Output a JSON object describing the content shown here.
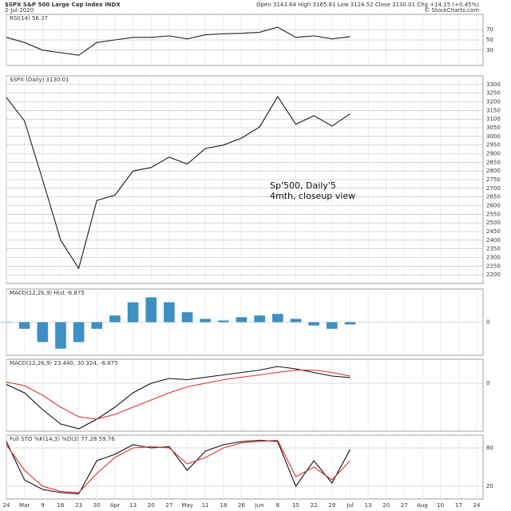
{
  "header": {
    "symbol": "$SPX S&P 500 Large Cap Index INDX",
    "date": "2-Jul-2020",
    "quote": "Open 3143.64  High 3165.81  Low 3124.52  Close 3130.01  Chg +14.15 (+0.45%)",
    "credit": "© StockCharts.com"
  },
  "chart_data": [
    {
      "type": "line",
      "title": "RSI(14) 56.37",
      "ylim": [
        0,
        100
      ],
      "yticks": [
        30,
        50,
        70
      ],
      "series": [
        {
          "color": "#222222",
          "values": [
            55,
            45,
            30,
            25,
            20,
            45,
            50,
            55,
            55,
            58,
            52,
            60,
            62,
            63,
            65,
            75,
            55,
            58,
            52,
            56.37,
            null,
            null,
            null,
            null,
            null,
            null,
            null
          ]
        }
      ]
    },
    {
      "type": "line",
      "title": "$SPX (Daily) 3130.01",
      "annotation": [
        "Sp'500, Daily'5",
        "4mth, closeup view"
      ],
      "ylim": [
        2150,
        3350
      ],
      "yticks": [
        2200,
        2250,
        2300,
        2350,
        2400,
        2450,
        2500,
        2550,
        2600,
        2650,
        2700,
        2750,
        2800,
        2850,
        2900,
        2950,
        3000,
        3050,
        3100,
        3150,
        3200,
        3250,
        3300
      ],
      "series": [
        {
          "color": "#1a1a1a",
          "values": [
            3225,
            3090,
            2750,
            2400,
            2237,
            2630,
            2660,
            2800,
            2820,
            2880,
            2840,
            2930,
            2950,
            2990,
            3055,
            3230,
            3070,
            3120,
            3060,
            3130,
            null,
            null,
            null,
            null,
            null,
            null,
            null
          ]
        }
      ]
    },
    {
      "type": "bar",
      "title": "MACD(12,26,9) Hist -6.875",
      "ylim": [
        -100,
        100
      ],
      "yticks": [
        0
      ],
      "color": "#3d8fc4",
      "values": [
        0.5,
        -20,
        -60,
        -80,
        -60,
        -20,
        20,
        60,
        75,
        60,
        30,
        10,
        5,
        15,
        20,
        25,
        10,
        -10,
        -20,
        -6.875,
        null,
        null,
        null,
        null,
        null,
        null,
        null
      ]
    },
    {
      "type": "line",
      "title": "MACD(12,26,9) 23.440, 30.324, -6.875",
      "ylim": [
        -200,
        100
      ],
      "yticks": [
        0
      ],
      "series": [
        {
          "color": "#111111",
          "values": [
            -5,
            -40,
            -110,
            -170,
            -190,
            -150,
            -100,
            -40,
            0,
            20,
            15,
            25,
            35,
            45,
            55,
            70,
            60,
            45,
            30,
            23.44,
            null,
            null,
            null,
            null,
            null,
            null,
            null
          ]
        },
        {
          "color": "#e0302a",
          "values": [
            5,
            -10,
            -50,
            -100,
            -140,
            -150,
            -130,
            -100,
            -70,
            -40,
            -15,
            0,
            15,
            25,
            35,
            45,
            55,
            55,
            45,
            30.324,
            null,
            null,
            null,
            null,
            null,
            null,
            null
          ]
        }
      ]
    },
    {
      "type": "line",
      "title": "Full STO %K(14,3) %D(3) 77.28 59.76",
      "ylim": [
        0,
        100
      ],
      "yticks": [
        20,
        80
      ],
      "categories": [
        "24",
        "Mar",
        "9",
        "16",
        "23",
        "30",
        "Apr",
        "13",
        "20",
        "27",
        "May",
        "11",
        "18",
        "26",
        "Jun",
        "8",
        "15",
        "22",
        "29",
        "Jul",
        "13",
        "20",
        "27",
        "Aug",
        "10",
        "17",
        "24"
      ],
      "series": [
        {
          "color": "#111111",
          "values": [
            90,
            30,
            15,
            10,
            8,
            60,
            70,
            85,
            80,
            82,
            45,
            75,
            85,
            90,
            92,
            90,
            20,
            60,
            25,
            77.28,
            null,
            null,
            null,
            null,
            null,
            null,
            null
          ]
        },
        {
          "color": "#e0302a",
          "values": [
            85,
            45,
            20,
            12,
            10,
            40,
            65,
            80,
            82,
            80,
            55,
            65,
            80,
            88,
            90,
            92,
            35,
            50,
            30,
            59.76,
            null,
            null,
            null,
            null,
            null,
            null,
            null
          ]
        }
      ]
    }
  ]
}
